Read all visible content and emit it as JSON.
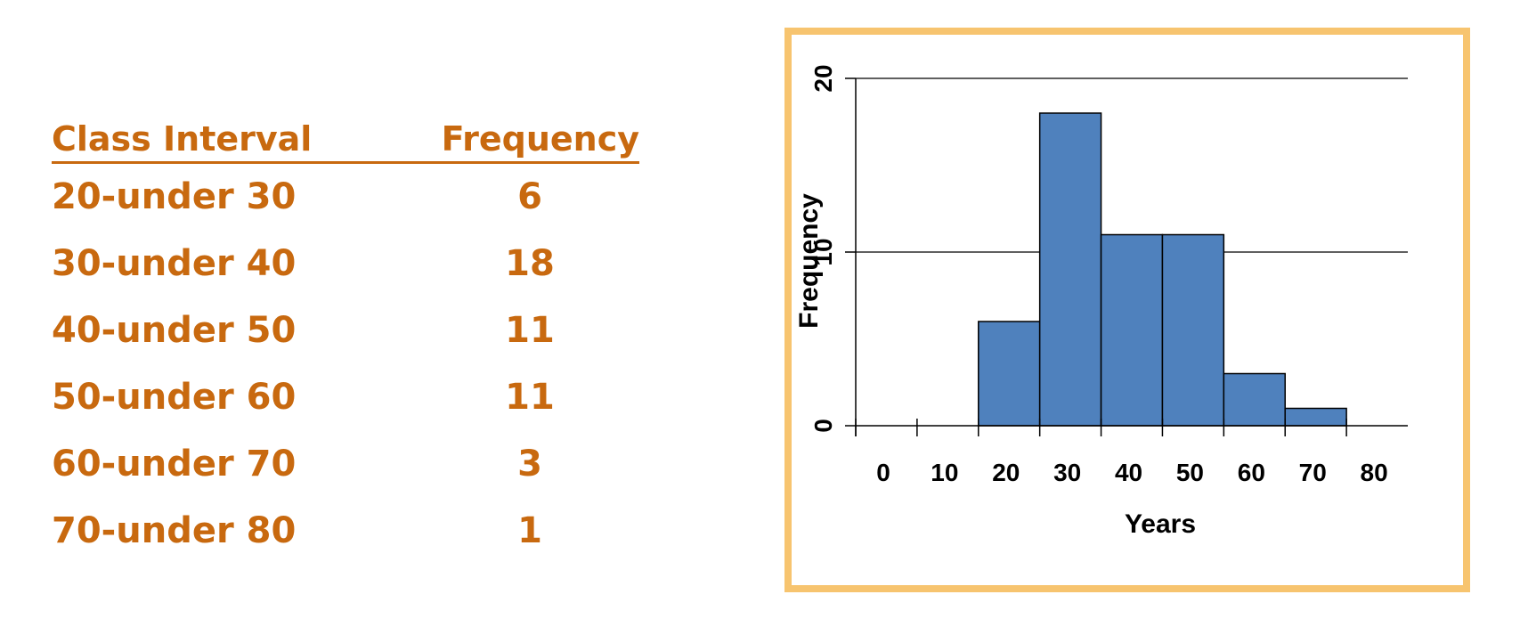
{
  "table": {
    "headers": {
      "class_interval": "Class Interval",
      "frequency": "Frequency"
    },
    "rows": [
      {
        "interval": "20-under 30",
        "frequency": "6"
      },
      {
        "interval": "30-under 40",
        "frequency": "18"
      },
      {
        "interval": "40-under 50",
        "frequency": "11"
      },
      {
        "interval": "50-under 60",
        "frequency": "11"
      },
      {
        "interval": "60-under 70",
        "frequency": "3"
      },
      {
        "interval": "70-under 80",
        "frequency": "1"
      }
    ],
    "colors": {
      "text": "#c8690f"
    }
  },
  "chart_data": {
    "type": "bar",
    "title": "",
    "xlabel": "Years",
    "ylabel": "Frequency",
    "bins": [
      {
        "start": 20,
        "end": 30,
        "value": 6
      },
      {
        "start": 30,
        "end": 40,
        "value": 18
      },
      {
        "start": 40,
        "end": 50,
        "value": 11
      },
      {
        "start": 50,
        "end": 60,
        "value": 11
      },
      {
        "start": 60,
        "end": 70,
        "value": 3
      },
      {
        "start": 70,
        "end": 80,
        "value": 1
      }
    ],
    "xlim": [
      0,
      90
    ],
    "ylim": [
      0,
      20
    ],
    "xticks": [
      0,
      10,
      20,
      30,
      40,
      50,
      60,
      70,
      80
    ],
    "xtick_labels": [
      "0",
      "10",
      "20",
      "30",
      "40",
      "50",
      "60",
      "70",
      "80"
    ],
    "yticks": [
      0,
      10,
      20
    ],
    "ytick_labels": [
      "0",
      "10",
      "20"
    ],
    "grid": "horizontal at 10 and 20",
    "legend": "none",
    "colors": {
      "bar_fill": "#4f81bd",
      "bar_stroke": "#000000",
      "frame_border": "#f7c46f"
    }
  }
}
